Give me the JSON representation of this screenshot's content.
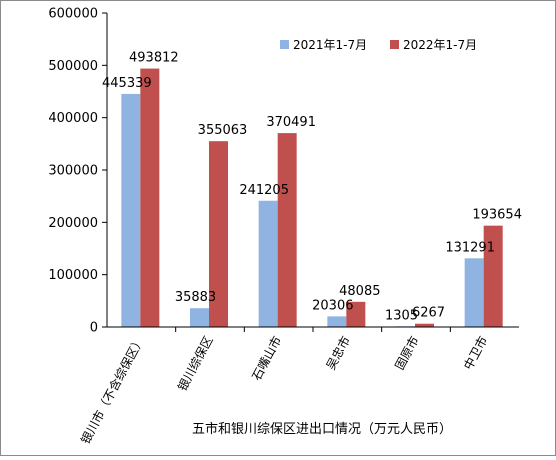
{
  "chart_data": {
    "type": "bar",
    "title": "",
    "xlabel": "五市和银川综保区进出口情况（万元人民币）",
    "ylabel": "",
    "ylim": [
      0,
      600000
    ],
    "yticks": [
      "0",
      "100000",
      "200000",
      "300000",
      "400000",
      "500000",
      "600000"
    ],
    "grid": false,
    "legend": "top-right",
    "categories": [
      "银川市（不含综保区）",
      "银川综保区",
      "石嘴山市",
      "吴忠市",
      "固原市",
      "中卫市"
    ],
    "series": [
      {
        "name": "2021年1-7月",
        "color": "#8fb4e2",
        "values": [
          445339,
          35883,
          241205,
          20306,
          1305,
          131291
        ],
        "labels": [
          "445339",
          "35883",
          "241205",
          "20306",
          "1305",
          "131291"
        ]
      },
      {
        "name": "2022年1-7月",
        "color": "#c0504d",
        "values": [
          493812,
          355063,
          370491,
          48085,
          6267,
          193654
        ],
        "labels": [
          "493812",
          "355063",
          "370491",
          "48085",
          "6267",
          "193654"
        ]
      }
    ]
  }
}
